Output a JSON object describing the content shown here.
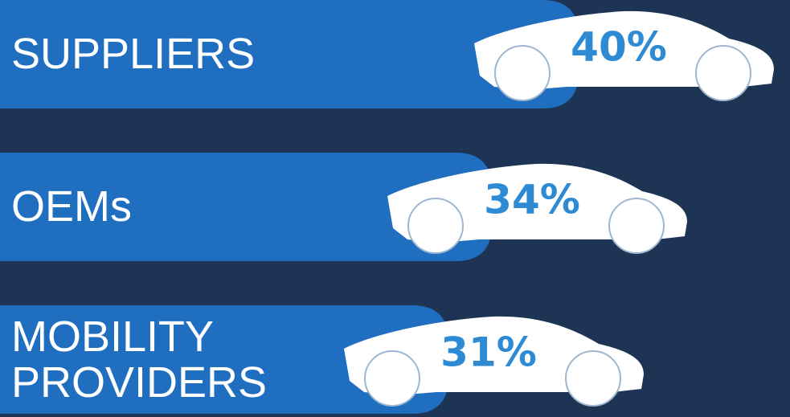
{
  "chart_data": {
    "type": "bar",
    "categories": [
      "SUPPLIERS",
      "OEMs",
      "MOBILITY PROVIDERS"
    ],
    "values": [
      40,
      34,
      31
    ],
    "value_labels": [
      "40%",
      "34%",
      "31%"
    ],
    "color": "#1f6ec0"
  }
}
